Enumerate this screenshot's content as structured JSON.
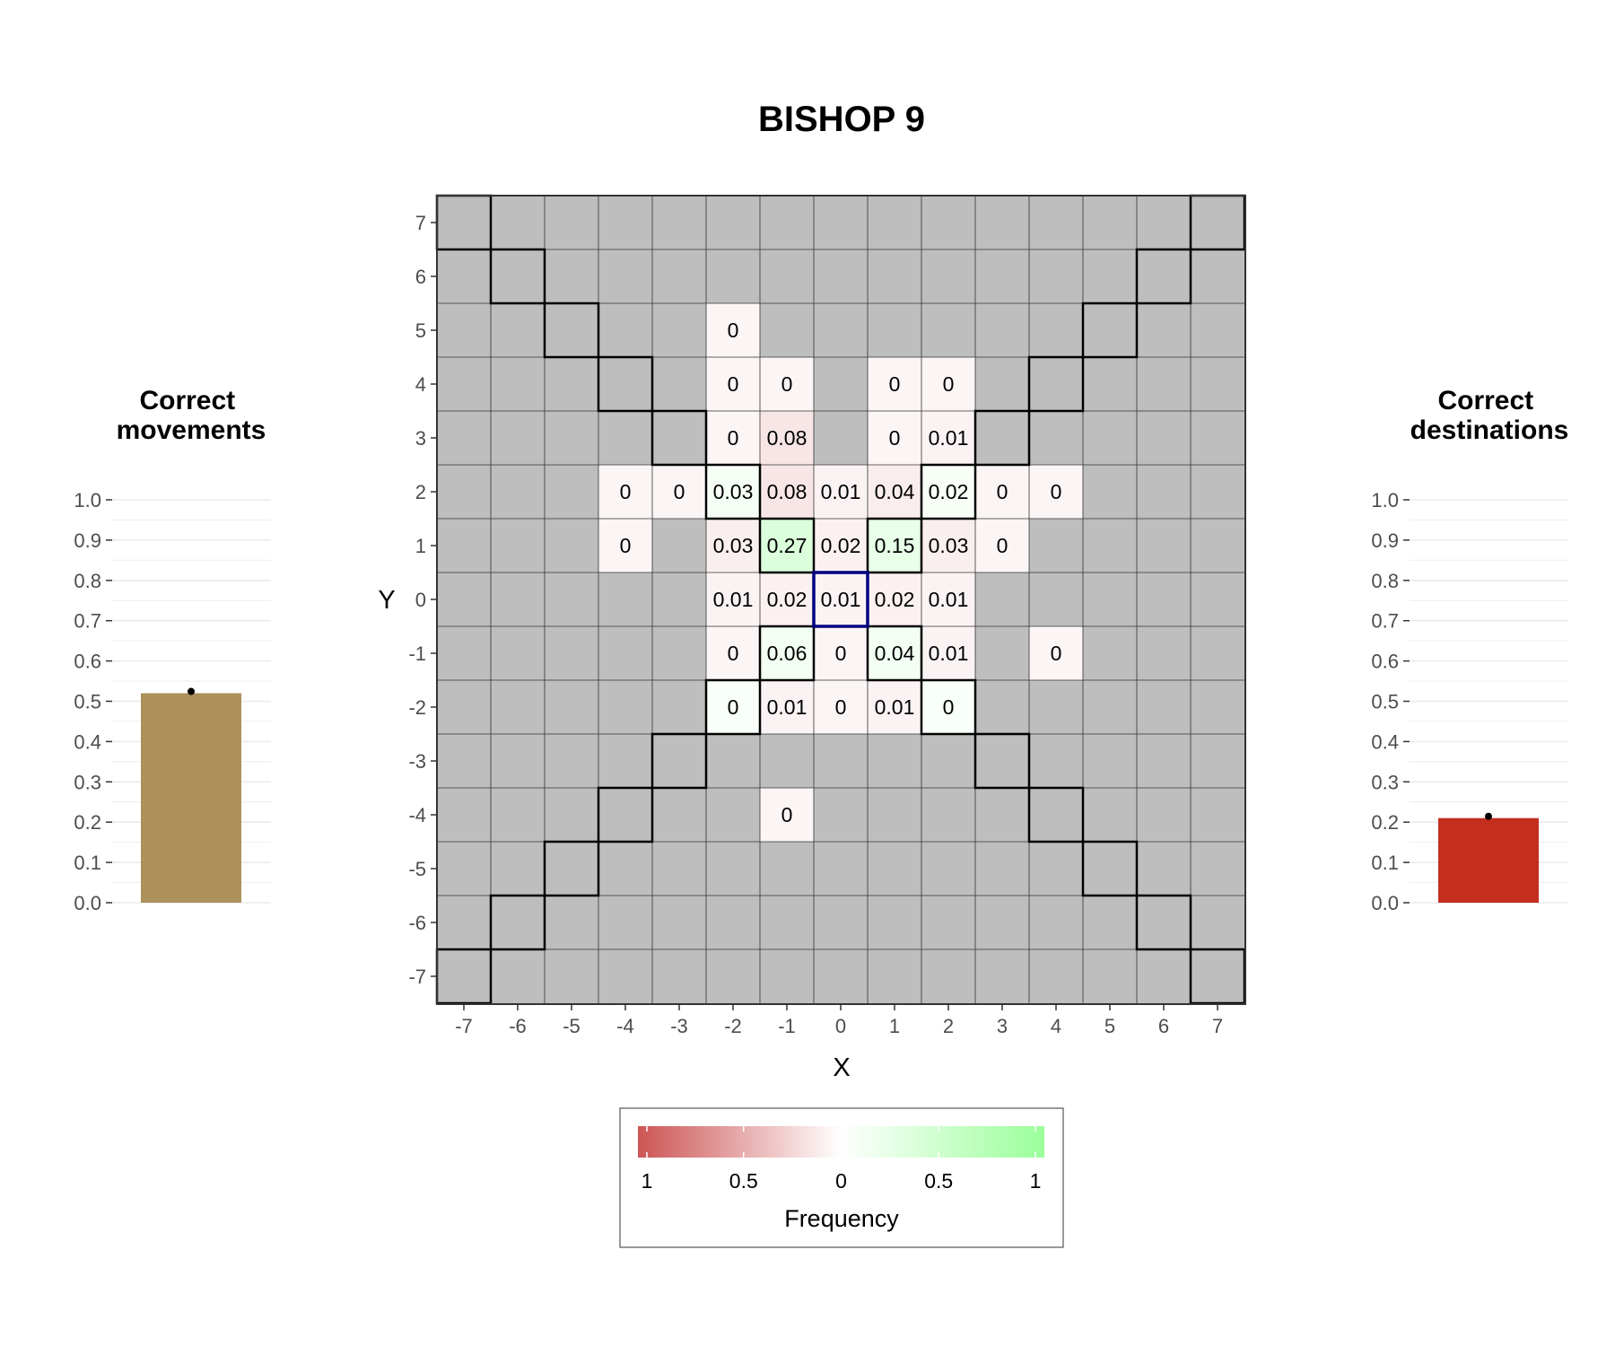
{
  "title": "BISHOP 9",
  "colors": {
    "panel_gray": "#bebebe",
    "grid_line": "#333333",
    "legend_high_left": "#cd5555",
    "legend_mid": "#ffffff",
    "legend_high_right": "#9aff9a",
    "start_outline": "#00007f",
    "movements_bar": "#ad915a",
    "destinations_bar": "#c32e1f"
  },
  "chart_data": [
    {
      "type": "heatmap",
      "xlabel": "X",
      "ylabel": "Y",
      "xlim": [
        -7,
        7
      ],
      "ylim": [
        -7,
        7
      ],
      "x_ticks": [
        "-7",
        "-6",
        "-5",
        "-4",
        "-3",
        "-2",
        "-1",
        "0",
        "1",
        "2",
        "3",
        "4",
        "5",
        "6",
        "7"
      ],
      "y_ticks": [
        "7",
        "6",
        "5",
        "4",
        "3",
        "2",
        "1",
        "0",
        "-1",
        "-2",
        "-3",
        "-4",
        "-5",
        "-6",
        "-7"
      ],
      "start_cell": [
        0,
        0
      ],
      "legal_destinations": [
        [
          -7,
          7
        ],
        [
          -6,
          6
        ],
        [
          -5,
          5
        ],
        [
          -4,
          4
        ],
        [
          -3,
          3
        ],
        [
          -2,
          2
        ],
        [
          -1,
          1
        ],
        [
          7,
          7
        ],
        [
          6,
          6
        ],
        [
          5,
          5
        ],
        [
          4,
          4
        ],
        [
          3,
          3
        ],
        [
          2,
          2
        ],
        [
          1,
          1
        ],
        [
          -1,
          -1
        ],
        [
          -2,
          -2
        ],
        [
          -3,
          -3
        ],
        [
          -4,
          -4
        ],
        [
          -5,
          -5
        ],
        [
          -6,
          -6
        ],
        [
          -7,
          -7
        ],
        [
          1,
          -1
        ],
        [
          2,
          -2
        ],
        [
          3,
          -3
        ],
        [
          4,
          -4
        ],
        [
          5,
          -5
        ],
        [
          6,
          -6
        ],
        [
          7,
          -7
        ]
      ],
      "cells": [
        {
          "x": -2,
          "y": 5,
          "label": "0",
          "value": 0,
          "correct": false
        },
        {
          "x": -2,
          "y": 4,
          "label": "0",
          "value": 0,
          "correct": false
        },
        {
          "x": -1,
          "y": 4,
          "label": "0",
          "value": 0,
          "correct": false
        },
        {
          "x": 1,
          "y": 4,
          "label": "0",
          "value": 0,
          "correct": false
        },
        {
          "x": 2,
          "y": 4,
          "label": "0",
          "value": 0,
          "correct": false
        },
        {
          "x": -2,
          "y": 3,
          "label": "0",
          "value": 0,
          "correct": false
        },
        {
          "x": -1,
          "y": 3,
          "label": "0.08",
          "value": 0.08,
          "correct": false
        },
        {
          "x": 1,
          "y": 3,
          "label": "0",
          "value": 0,
          "correct": false
        },
        {
          "x": 2,
          "y": 3,
          "label": "0.01",
          "value": 0.01,
          "correct": false
        },
        {
          "x": -4,
          "y": 2,
          "label": "0",
          "value": 0,
          "correct": false
        },
        {
          "x": -3,
          "y": 2,
          "label": "0",
          "value": 0,
          "correct": false
        },
        {
          "x": -2,
          "y": 2,
          "label": "0.03",
          "value": 0.03,
          "correct": true
        },
        {
          "x": -1,
          "y": 2,
          "label": "0.08",
          "value": 0.08,
          "correct": false
        },
        {
          "x": 0,
          "y": 2,
          "label": "0.01",
          "value": 0.01,
          "correct": false
        },
        {
          "x": 1,
          "y": 2,
          "label": "0.04",
          "value": 0.04,
          "correct": false
        },
        {
          "x": 2,
          "y": 2,
          "label": "0.02",
          "value": 0.02,
          "correct": true
        },
        {
          "x": 3,
          "y": 2,
          "label": "0",
          "value": 0,
          "correct": false
        },
        {
          "x": 4,
          "y": 2,
          "label": "0",
          "value": 0,
          "correct": false
        },
        {
          "x": -4,
          "y": 1,
          "label": "0",
          "value": 0,
          "correct": false
        },
        {
          "x": -2,
          "y": 1,
          "label": "0.03",
          "value": 0.03,
          "correct": false
        },
        {
          "x": -1,
          "y": 1,
          "label": "0.27",
          "value": 0.27,
          "correct": true
        },
        {
          "x": 0,
          "y": 1,
          "label": "0.02",
          "value": 0.02,
          "correct": false
        },
        {
          "x": 1,
          "y": 1,
          "label": "0.15",
          "value": 0.15,
          "correct": true
        },
        {
          "x": 2,
          "y": 1,
          "label": "0.03",
          "value": 0.03,
          "correct": false
        },
        {
          "x": 3,
          "y": 1,
          "label": "0",
          "value": 0,
          "correct": false
        },
        {
          "x": -2,
          "y": 0,
          "label": "0.01",
          "value": 0.01,
          "correct": false
        },
        {
          "x": -1,
          "y": 0,
          "label": "0.02",
          "value": 0.02,
          "correct": false
        },
        {
          "x": 0,
          "y": 0,
          "label": "0.01",
          "value": 0.01,
          "correct": false
        },
        {
          "x": 1,
          "y": 0,
          "label": "0.02",
          "value": 0.02,
          "correct": false
        },
        {
          "x": 2,
          "y": 0,
          "label": "0.01",
          "value": 0.01,
          "correct": false
        },
        {
          "x": -2,
          "y": -1,
          "label": "0",
          "value": 0,
          "correct": false
        },
        {
          "x": -1,
          "y": -1,
          "label": "0.06",
          "value": 0.06,
          "correct": true
        },
        {
          "x": 0,
          "y": -1,
          "label": "0",
          "value": 0,
          "correct": false
        },
        {
          "x": 1,
          "y": -1,
          "label": "0.04",
          "value": 0.04,
          "correct": true
        },
        {
          "x": 2,
          "y": -1,
          "label": "0.01",
          "value": 0.01,
          "correct": false
        },
        {
          "x": 4,
          "y": -1,
          "label": "0",
          "value": 0,
          "correct": false
        },
        {
          "x": -2,
          "y": -2,
          "label": "0",
          "value": 0,
          "correct": true
        },
        {
          "x": -1,
          "y": -2,
          "label": "0.01",
          "value": 0.01,
          "correct": false
        },
        {
          "x": 0,
          "y": -2,
          "label": "0",
          "value": 0,
          "correct": false
        },
        {
          "x": 1,
          "y": -2,
          "label": "0.01",
          "value": 0.01,
          "correct": false
        },
        {
          "x": 2,
          "y": -2,
          "label": "0",
          "value": 0,
          "correct": true
        },
        {
          "x": -1,
          "y": -4,
          "label": "0",
          "value": 0,
          "correct": false
        }
      ],
      "legend": {
        "title": "Frequency",
        "tick_labels": [
          "1",
          "0.5",
          "0",
          "0.5",
          "1"
        ],
        "placement": "bottom"
      }
    },
    {
      "type": "bar",
      "title": "Correct\nmovements",
      "values": [
        0.52
      ],
      "ylim": [
        0,
        1
      ],
      "y_ticks": [
        "0.0",
        "0.1",
        "0.2",
        "0.3",
        "0.4",
        "0.5",
        "0.6",
        "0.7",
        "0.8",
        "0.9",
        "1.0"
      ]
    },
    {
      "type": "bar",
      "title": "Correct\ndestinations",
      "values": [
        0.21
      ],
      "ylim": [
        0,
        1
      ],
      "y_ticks": [
        "0.0",
        "0.1",
        "0.2",
        "0.3",
        "0.4",
        "0.5",
        "0.6",
        "0.7",
        "0.8",
        "0.9",
        "1.0"
      ]
    }
  ]
}
